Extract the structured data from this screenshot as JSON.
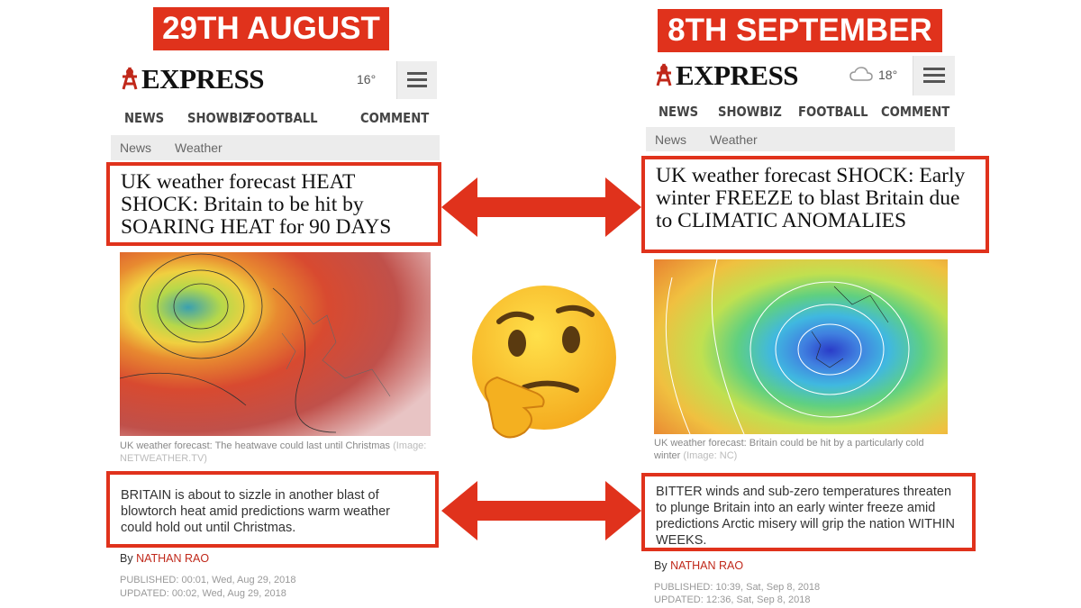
{
  "panels": [
    {
      "label": "29TH AUGUST",
      "logo": "EXPRESS",
      "temperature": "16°",
      "nav": [
        "NEWS",
        "SHOWBIZ",
        "FOOTBALL",
        "COMMENT"
      ],
      "breadcrumb": [
        "News",
        "Weather"
      ],
      "headline": "UK weather forecast HEAT SHOCK: Britain to be hit by SOARING HEAT for 90 DAYS",
      "caption": "UK weather forecast: The heatwave could last until Christmas",
      "image_credit": "(Image: NETWEATHER.TV)",
      "standfirst": "BRITAIN is about to sizzle in another blast of blowtorch heat amid predictions warm weather could hold out until Christmas.",
      "byline_prefix": "By",
      "author": "NATHAN RAO",
      "published": "PUBLISHED: 00:01, Wed, Aug 29, 2018",
      "updated": "UPDATED: 00:02, Wed, Aug 29, 2018"
    },
    {
      "label": "8TH SEPTEMBER",
      "logo": "EXPRESS",
      "temperature": "18°",
      "nav": [
        "NEWS",
        "SHOWBIZ",
        "FOOTBALL",
        "COMMENT"
      ],
      "breadcrumb": [
        "News",
        "Weather"
      ],
      "headline": "UK weather forecast SHOCK: Early winter FREEZE to blast Britain due to CLIMATIC ANOMALIES",
      "caption": "UK weather forecast: Britain could be hit by a particularly cold winter",
      "image_credit": "(Image: NC)",
      "standfirst": "BITTER winds and sub-zero temperatures threaten to plunge Britain into an early winter freeze amid predictions Arctic misery will grip the nation WITHIN WEEKS.",
      "byline_prefix": "By",
      "author": "NATHAN RAO",
      "published": "PUBLISHED: 10:39, Sat, Sep 8, 2018",
      "updated": "UPDATED: 12:36, Sat, Sep 8, 2018"
    }
  ]
}
